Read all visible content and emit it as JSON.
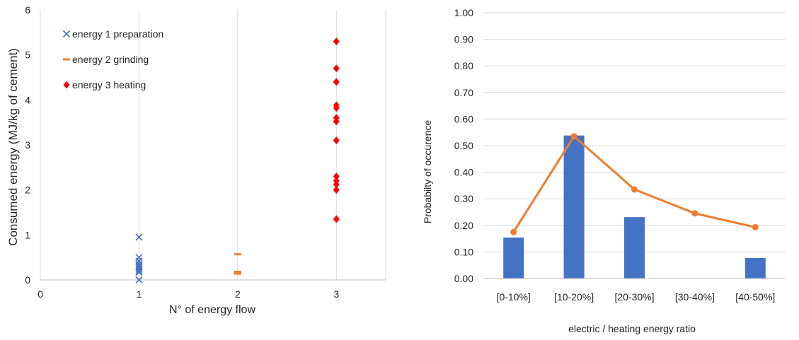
{
  "chart_data": [
    {
      "type": "scatter",
      "title": "",
      "xlabel": "N° of energy flow",
      "ylabel": "Consumed energy (MJ/kg of cement)",
      "xlim": [
        0,
        3.5
      ],
      "ylim": [
        0,
        6
      ],
      "x_ticks": [
        "0",
        "1",
        "2",
        "3"
      ],
      "y_ticks": [
        "0",
        "1",
        "2",
        "3",
        "4",
        "5",
        "6"
      ],
      "grid": "vertical",
      "legend_position": "top-left",
      "series": [
        {
          "name": "energy 1 preparation",
          "marker": "x",
          "color": "#4472C4",
          "points": [
            [
              1,
              0.95
            ],
            [
              1,
              0.5
            ],
            [
              1,
              0.42
            ],
            [
              1,
              0.36
            ],
            [
              1,
              0.32
            ],
            [
              1,
              0.28
            ],
            [
              1,
              0.24
            ],
            [
              1,
              0.2
            ],
            [
              1,
              0.17
            ],
            [
              1,
              0.0
            ]
          ]
        },
        {
          "name": "energy 2 grinding",
          "marker": "dash",
          "color": "#ED7D31",
          "points": [
            [
              2,
              0.57
            ],
            [
              2,
              0.18
            ],
            [
              2,
              0.16
            ],
            [
              2,
              0.14
            ]
          ]
        },
        {
          "name": "energy 3 heating",
          "marker": "diamond",
          "color": "#FF0000",
          "points": [
            [
              3,
              5.3
            ],
            [
              3,
              4.7
            ],
            [
              3,
              4.4
            ],
            [
              3,
              3.88
            ],
            [
              3,
              3.82
            ],
            [
              3,
              3.6
            ],
            [
              3,
              3.52
            ],
            [
              3,
              3.1
            ],
            [
              3,
              2.3
            ],
            [
              3,
              2.2
            ],
            [
              3,
              2.12
            ],
            [
              3,
              2.0
            ],
            [
              3,
              1.35
            ]
          ]
        }
      ]
    },
    {
      "type": "bar",
      "title": "",
      "xlabel": "electric / heating energy ratio",
      "ylabel": "Probabilty of occurence",
      "ylim": [
        0,
        1
      ],
      "categories": [
        "[0-10%]",
        "[10-20%]",
        "[20-30%]",
        "[30-40%]",
        "[40-50%]"
      ],
      "y_ticks": [
        "0.00",
        "0.10",
        "0.20",
        "0.30",
        "0.40",
        "0.50",
        "0.60",
        "0.70",
        "0.80",
        "0.90",
        "1.00"
      ],
      "grid": "horizontal",
      "bar_color": "#4472C4",
      "line_color": "#ED7D31",
      "series": [
        {
          "kind": "bar",
          "values": [
            0.154,
            0.538,
            0.231,
            0.0,
            0.077
          ]
        },
        {
          "kind": "line",
          "values": [
            0.175,
            0.535,
            0.335,
            0.245,
            0.193
          ]
        }
      ]
    }
  ]
}
